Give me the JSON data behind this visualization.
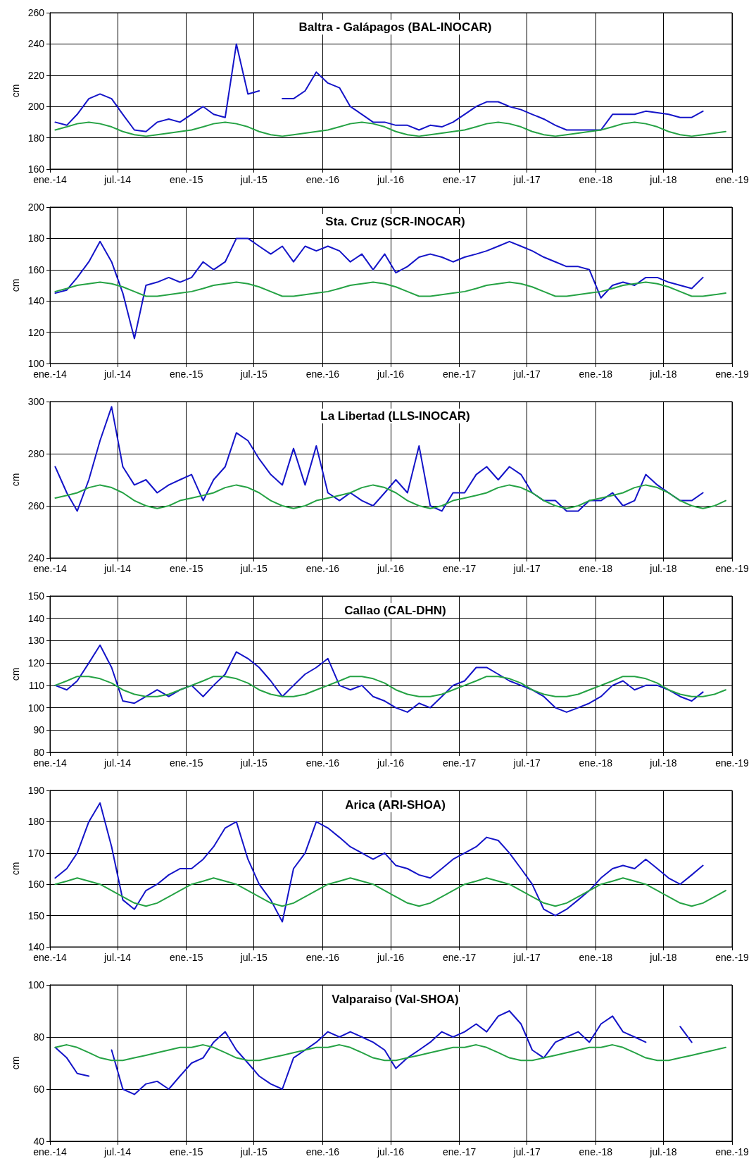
{
  "chart_data": [
    {
      "type": "line",
      "title": "Baltra - Galápagos (BAL-INOCAR)",
      "ylabel": "cm",
      "grid": true,
      "x": [
        "2014-01-15",
        "2014-02-15",
        "2014-03-15",
        "2014-04-15",
        "2014-05-15",
        "2014-06-15",
        "2014-07-15",
        "2014-08-15",
        "2014-09-15",
        "2014-10-15",
        "2014-11-15",
        "2014-12-15",
        "2015-01-15",
        "2015-02-15",
        "2015-03-15",
        "2015-04-15",
        "2015-05-15",
        "2015-06-15",
        "2015-07-15",
        "2015-08-15",
        "2015-09-15",
        "2015-10-15",
        "2015-11-15",
        "2015-12-15",
        "2016-01-15",
        "2016-02-15",
        "2016-03-15",
        "2016-04-15",
        "2016-05-15",
        "2016-06-15",
        "2016-07-15",
        "2016-08-15",
        "2016-09-15",
        "2016-10-15",
        "2016-11-15",
        "2016-12-15",
        "2017-01-15",
        "2017-02-15",
        "2017-03-15",
        "2017-04-15",
        "2017-05-15",
        "2017-06-15",
        "2017-07-15",
        "2017-08-15",
        "2017-09-15",
        "2017-10-15",
        "2017-11-15",
        "2017-12-15",
        "2018-01-15",
        "2018-02-15",
        "2018-03-15",
        "2018-04-15",
        "2018-05-15",
        "2018-06-15",
        "2018-07-15",
        "2018-08-15",
        "2018-09-15",
        "2018-10-15",
        "2018-11-15",
        "2018-12-15"
      ],
      "series": [
        {
          "color": "#1414c8",
          "values": [
            190,
            188,
            195,
            205,
            208,
            205,
            195,
            185,
            184,
            190,
            192,
            190,
            195,
            200,
            195,
            193,
            240,
            208,
            210,
            null,
            205,
            205,
            210,
            222,
            215,
            212,
            200,
            195,
            190,
            190,
            188,
            188,
            185,
            188,
            187,
            190,
            195,
            200,
            203,
            203,
            200,
            198,
            195,
            192,
            188,
            185,
            185,
            185,
            185,
            195,
            195,
            195,
            197,
            196,
            195,
            193,
            193,
            197,
            null,
            null
          ]
        },
        {
          "color": "#25a244",
          "values": [
            185,
            187,
            189,
            190,
            189,
            187,
            184,
            182,
            181,
            182,
            183,
            184,
            185,
            187,
            189,
            190,
            189,
            187,
            184,
            182,
            181,
            182,
            183,
            184,
            185,
            187,
            189,
            190,
            189,
            187,
            184,
            182,
            181,
            182,
            183,
            184,
            185,
            187,
            189,
            190,
            189,
            187,
            184,
            182,
            181,
            182,
            183,
            184,
            185,
            187,
            189,
            190,
            189,
            187,
            184,
            182,
            181,
            182,
            183,
            184
          ]
        }
      ],
      "xlim": [
        "2014-01",
        "2019-01"
      ],
      "xticks": [
        {
          "value": "2014-01",
          "label": "ene.-14"
        },
        {
          "value": "2014-07",
          "label": "jul.-14"
        },
        {
          "value": "2015-01",
          "label": "ene.-15"
        },
        {
          "value": "2015-07",
          "label": "jul.-15"
        },
        {
          "value": "2016-01",
          "label": "ene.-16"
        },
        {
          "value": "2016-07",
          "label": "jul.-16"
        },
        {
          "value": "2017-01",
          "label": "ene.-17"
        },
        {
          "value": "2017-07",
          "label": "jul.-17"
        },
        {
          "value": "2018-01",
          "label": "ene.-18"
        },
        {
          "value": "2018-07",
          "label": "jul.-18"
        },
        {
          "value": "2019-01",
          "label": "ene.-19"
        }
      ],
      "ylim": [
        160,
        260
      ],
      "yticks": [
        160,
        180,
        200,
        220,
        240,
        260
      ]
    },
    {
      "type": "line",
      "title": "Sta. Cruz (SCR-INOCAR)",
      "ylabel": "cm",
      "grid": true,
      "x": [
        "2014-01-15",
        "2014-02-15",
        "2014-03-15",
        "2014-04-15",
        "2014-05-15",
        "2014-06-15",
        "2014-07-15",
        "2014-08-15",
        "2014-09-15",
        "2014-10-15",
        "2014-11-15",
        "2014-12-15",
        "2015-01-15",
        "2015-02-15",
        "2015-03-15",
        "2015-04-15",
        "2015-05-15",
        "2015-06-15",
        "2015-07-15",
        "2015-08-15",
        "2015-09-15",
        "2015-10-15",
        "2015-11-15",
        "2015-12-15",
        "2016-01-15",
        "2016-02-15",
        "2016-03-15",
        "2016-04-15",
        "2016-05-15",
        "2016-06-15",
        "2016-07-15",
        "2016-08-15",
        "2016-09-15",
        "2016-10-15",
        "2016-11-15",
        "2016-12-15",
        "2017-01-15",
        "2017-02-15",
        "2017-03-15",
        "2017-04-15",
        "2017-05-15",
        "2017-06-15",
        "2017-07-15",
        "2017-08-15",
        "2017-09-15",
        "2017-10-15",
        "2017-11-15",
        "2017-12-15",
        "2018-01-15",
        "2018-02-15",
        "2018-03-15",
        "2018-04-15",
        "2018-05-15",
        "2018-06-15",
        "2018-07-15",
        "2018-08-15",
        "2018-09-15",
        "2018-10-15",
        "2018-11-15",
        "2018-12-15"
      ],
      "series": [
        {
          "color": "#1414c8",
          "values": [
            145,
            147,
            155,
            165,
            178,
            165,
            145,
            116,
            150,
            152,
            155,
            152,
            155,
            165,
            160,
            165,
            180,
            180,
            175,
            170,
            175,
            165,
            175,
            172,
            175,
            172,
            165,
            170,
            160,
            170,
            158,
            162,
            168,
            170,
            168,
            165,
            168,
            170,
            172,
            175,
            178,
            175,
            172,
            168,
            165,
            162,
            162,
            160,
            142,
            150,
            152,
            150,
            155,
            155,
            152,
            150,
            148,
            155,
            null,
            null
          ]
        },
        {
          "color": "#25a244",
          "values": [
            146,
            148,
            150,
            151,
            152,
            151,
            149,
            146,
            143,
            143,
            144,
            145,
            146,
            148,
            150,
            151,
            152,
            151,
            149,
            146,
            143,
            143,
            144,
            145,
            146,
            148,
            150,
            151,
            152,
            151,
            149,
            146,
            143,
            143,
            144,
            145,
            146,
            148,
            150,
            151,
            152,
            151,
            149,
            146,
            143,
            143,
            144,
            145,
            146,
            148,
            150,
            151,
            152,
            151,
            149,
            146,
            143,
            143,
            144,
            145
          ]
        }
      ],
      "xlim": [
        "2014-01",
        "2019-01"
      ],
      "xticks": [
        {
          "value": "2014-01",
          "label": "ene.-14"
        },
        {
          "value": "2014-07",
          "label": "jul.-14"
        },
        {
          "value": "2015-01",
          "label": "ene.-15"
        },
        {
          "value": "2015-07",
          "label": "jul.-15"
        },
        {
          "value": "2016-01",
          "label": "ene.-16"
        },
        {
          "value": "2016-07",
          "label": "jul.-16"
        },
        {
          "value": "2017-01",
          "label": "ene.-17"
        },
        {
          "value": "2017-07",
          "label": "jul.-17"
        },
        {
          "value": "2018-01",
          "label": "ene.-18"
        },
        {
          "value": "2018-07",
          "label": "jul.-18"
        },
        {
          "value": "2019-01",
          "label": "ene.-19"
        }
      ],
      "ylim": [
        100,
        200
      ],
      "yticks": [
        100,
        120,
        140,
        160,
        180,
        200
      ]
    },
    {
      "type": "line",
      "title": "La Libertad (LLS-INOCAR)",
      "ylabel": "cm",
      "grid": true,
      "x": [
        "2014-01-15",
        "2014-02-15",
        "2014-03-15",
        "2014-04-15",
        "2014-05-15",
        "2014-06-15",
        "2014-07-15",
        "2014-08-15",
        "2014-09-15",
        "2014-10-15",
        "2014-11-15",
        "2014-12-15",
        "2015-01-15",
        "2015-02-15",
        "2015-03-15",
        "2015-04-15",
        "2015-05-15",
        "2015-06-15",
        "2015-07-15",
        "2015-08-15",
        "2015-09-15",
        "2015-10-15",
        "2015-11-15",
        "2015-12-15",
        "2016-01-15",
        "2016-02-15",
        "2016-03-15",
        "2016-04-15",
        "2016-05-15",
        "2016-06-15",
        "2016-07-15",
        "2016-08-15",
        "2016-09-15",
        "2016-10-15",
        "2016-11-15",
        "2016-12-15",
        "2017-01-15",
        "2017-02-15",
        "2017-03-15",
        "2017-04-15",
        "2017-05-15",
        "2017-06-15",
        "2017-07-15",
        "2017-08-15",
        "2017-09-15",
        "2017-10-15",
        "2017-11-15",
        "2017-12-15",
        "2018-01-15",
        "2018-02-15",
        "2018-03-15",
        "2018-04-15",
        "2018-05-15",
        "2018-06-15",
        "2018-07-15",
        "2018-08-15",
        "2018-09-15",
        "2018-10-15",
        "2018-11-15",
        "2018-12-15"
      ],
      "series": [
        {
          "color": "#1414c8",
          "values": [
            275,
            265,
            258,
            270,
            285,
            298,
            275,
            268,
            270,
            265,
            268,
            270,
            272,
            262,
            270,
            275,
            288,
            285,
            278,
            272,
            268,
            282,
            268,
            283,
            265,
            262,
            265,
            262,
            260,
            265,
            270,
            265,
            283,
            260,
            258,
            265,
            265,
            272,
            275,
            270,
            275,
            272,
            265,
            262,
            262,
            258,
            258,
            262,
            262,
            265,
            260,
            262,
            272,
            268,
            265,
            262,
            262,
            265,
            null,
            null
          ]
        },
        {
          "color": "#25a244",
          "values": [
            263,
            264,
            265,
            267,
            268,
            267,
            265,
            262,
            260,
            259,
            260,
            262,
            263,
            264,
            265,
            267,
            268,
            267,
            265,
            262,
            260,
            259,
            260,
            262,
            263,
            264,
            265,
            267,
            268,
            267,
            265,
            262,
            260,
            259,
            260,
            262,
            263,
            264,
            265,
            267,
            268,
            267,
            265,
            262,
            260,
            259,
            260,
            262,
            263,
            264,
            265,
            267,
            268,
            267,
            265,
            262,
            260,
            259,
            260,
            262
          ]
        }
      ],
      "xlim": [
        "2014-01",
        "2019-01"
      ],
      "xticks": [
        {
          "value": "2014-01",
          "label": "ene.-14"
        },
        {
          "value": "2014-07",
          "label": "jul.-14"
        },
        {
          "value": "2015-01",
          "label": "ene.-15"
        },
        {
          "value": "2015-07",
          "label": "jul.-15"
        },
        {
          "value": "2016-01",
          "label": "ene.-16"
        },
        {
          "value": "2016-07",
          "label": "jul.-16"
        },
        {
          "value": "2017-01",
          "label": "ene.-17"
        },
        {
          "value": "2017-07",
          "label": "jul.-17"
        },
        {
          "value": "2018-01",
          "label": "ene.-18"
        },
        {
          "value": "2018-07",
          "label": "jul.-18"
        },
        {
          "value": "2019-01",
          "label": "ene.-19"
        }
      ],
      "ylim": [
        240,
        300
      ],
      "yticks": [
        240,
        260,
        280,
        300
      ]
    },
    {
      "type": "line",
      "title": "Callao (CAL-DHN)",
      "ylabel": "cm",
      "grid": true,
      "x": [
        "2014-01-15",
        "2014-02-15",
        "2014-03-15",
        "2014-04-15",
        "2014-05-15",
        "2014-06-15",
        "2014-07-15",
        "2014-08-15",
        "2014-09-15",
        "2014-10-15",
        "2014-11-15",
        "2014-12-15",
        "2015-01-15",
        "2015-02-15",
        "2015-03-15",
        "2015-04-15",
        "2015-05-15",
        "2015-06-15",
        "2015-07-15",
        "2015-08-15",
        "2015-09-15",
        "2015-10-15",
        "2015-11-15",
        "2015-12-15",
        "2016-01-15",
        "2016-02-15",
        "2016-03-15",
        "2016-04-15",
        "2016-05-15",
        "2016-06-15",
        "2016-07-15",
        "2016-08-15",
        "2016-09-15",
        "2016-10-15",
        "2016-11-15",
        "2016-12-15",
        "2017-01-15",
        "2017-02-15",
        "2017-03-15",
        "2017-04-15",
        "2017-05-15",
        "2017-06-15",
        "2017-07-15",
        "2017-08-15",
        "2017-09-15",
        "2017-10-15",
        "2017-11-15",
        "2017-12-15",
        "2018-01-15",
        "2018-02-15",
        "2018-03-15",
        "2018-04-15",
        "2018-05-15",
        "2018-06-15",
        "2018-07-15",
        "2018-08-15",
        "2018-09-15",
        "2018-10-15",
        "2018-11-15",
        "2018-12-15"
      ],
      "series": [
        {
          "color": "#1414c8",
          "values": [
            110,
            108,
            112,
            120,
            128,
            118,
            103,
            102,
            105,
            108,
            105,
            108,
            110,
            105,
            110,
            115,
            125,
            122,
            118,
            112,
            105,
            110,
            115,
            118,
            122,
            110,
            108,
            110,
            105,
            103,
            100,
            98,
            102,
            100,
            105,
            110,
            112,
            118,
            118,
            115,
            112,
            110,
            108,
            105,
            100,
            98,
            100,
            102,
            105,
            110,
            112,
            108,
            110,
            110,
            108,
            105,
            103,
            107,
            null,
            null
          ]
        },
        {
          "color": "#25a244",
          "values": [
            110,
            112,
            114,
            114,
            113,
            111,
            108,
            106,
            105,
            105,
            106,
            108,
            110,
            112,
            114,
            114,
            113,
            111,
            108,
            106,
            105,
            105,
            106,
            108,
            110,
            112,
            114,
            114,
            113,
            111,
            108,
            106,
            105,
            105,
            106,
            108,
            110,
            112,
            114,
            114,
            113,
            111,
            108,
            106,
            105,
            105,
            106,
            108,
            110,
            112,
            114,
            114,
            113,
            111,
            108,
            106,
            105,
            105,
            106,
            108
          ]
        }
      ],
      "xlim": [
        "2014-01",
        "2019-01"
      ],
      "xticks": [
        {
          "value": "2014-01",
          "label": "ene.-14"
        },
        {
          "value": "2014-07",
          "label": "jul.-14"
        },
        {
          "value": "2015-01",
          "label": "ene.-15"
        },
        {
          "value": "2015-07",
          "label": "jul.-15"
        },
        {
          "value": "2016-01",
          "label": "ene.-16"
        },
        {
          "value": "2016-07",
          "label": "jul.-16"
        },
        {
          "value": "2017-01",
          "label": "ene.-17"
        },
        {
          "value": "2017-07",
          "label": "jul.-17"
        },
        {
          "value": "2018-01",
          "label": "ene.-18"
        },
        {
          "value": "2018-07",
          "label": "jul.-18"
        },
        {
          "value": "2019-01",
          "label": "ene.-19"
        }
      ],
      "ylim": [
        80,
        150
      ],
      "yticks": [
        80,
        90,
        100,
        110,
        120,
        130,
        140,
        150
      ]
    },
    {
      "type": "line",
      "title": "Arica (ARI-SHOA)",
      "ylabel": "cm",
      "grid": true,
      "x": [
        "2014-01-15",
        "2014-02-15",
        "2014-03-15",
        "2014-04-15",
        "2014-05-15",
        "2014-06-15",
        "2014-07-15",
        "2014-08-15",
        "2014-09-15",
        "2014-10-15",
        "2014-11-15",
        "2014-12-15",
        "2015-01-15",
        "2015-02-15",
        "2015-03-15",
        "2015-04-15",
        "2015-05-15",
        "2015-06-15",
        "2015-07-15",
        "2015-08-15",
        "2015-09-15",
        "2015-10-15",
        "2015-11-15",
        "2015-12-15",
        "2016-01-15",
        "2016-02-15",
        "2016-03-15",
        "2016-04-15",
        "2016-05-15",
        "2016-06-15",
        "2016-07-15",
        "2016-08-15",
        "2016-09-15",
        "2016-10-15",
        "2016-11-15",
        "2016-12-15",
        "2017-01-15",
        "2017-02-15",
        "2017-03-15",
        "2017-04-15",
        "2017-05-15",
        "2017-06-15",
        "2017-07-15",
        "2017-08-15",
        "2017-09-15",
        "2017-10-15",
        "2017-11-15",
        "2017-12-15",
        "2018-01-15",
        "2018-02-15",
        "2018-03-15",
        "2018-04-15",
        "2018-05-15",
        "2018-06-15",
        "2018-07-15",
        "2018-08-15",
        "2018-09-15",
        "2018-10-15",
        "2018-11-15",
        "2018-12-15"
      ],
      "series": [
        {
          "color": "#1414c8",
          "values": [
            162,
            165,
            170,
            180,
            186,
            172,
            155,
            152,
            158,
            160,
            163,
            165,
            165,
            168,
            172,
            178,
            180,
            168,
            160,
            155,
            148,
            165,
            170,
            180,
            178,
            175,
            172,
            170,
            168,
            170,
            166,
            165,
            163,
            162,
            165,
            168,
            170,
            172,
            175,
            174,
            170,
            165,
            160,
            152,
            150,
            152,
            155,
            158,
            162,
            165,
            166,
            165,
            168,
            165,
            162,
            160,
            163,
            166,
            null,
            null
          ]
        },
        {
          "color": "#25a244",
          "values": [
            160,
            161,
            162,
            161,
            160,
            158,
            156,
            154,
            153,
            154,
            156,
            158,
            160,
            161,
            162,
            161,
            160,
            158,
            156,
            154,
            153,
            154,
            156,
            158,
            160,
            161,
            162,
            161,
            160,
            158,
            156,
            154,
            153,
            154,
            156,
            158,
            160,
            161,
            162,
            161,
            160,
            158,
            156,
            154,
            153,
            154,
            156,
            158,
            160,
            161,
            162,
            161,
            160,
            158,
            156,
            154,
            153,
            154,
            156,
            158
          ]
        }
      ],
      "xlim": [
        "2014-01",
        "2019-01"
      ],
      "xticks": [
        {
          "value": "2014-01",
          "label": "ene.-14"
        },
        {
          "value": "2014-07",
          "label": "jul.-14"
        },
        {
          "value": "2015-01",
          "label": "ene.-15"
        },
        {
          "value": "2015-07",
          "label": "jul.-15"
        },
        {
          "value": "2016-01",
          "label": "ene.-16"
        },
        {
          "value": "2016-07",
          "label": "jul.-16"
        },
        {
          "value": "2017-01",
          "label": "ene.-17"
        },
        {
          "value": "2017-07",
          "label": "jul.-17"
        },
        {
          "value": "2018-01",
          "label": "ene.-18"
        },
        {
          "value": "2018-07",
          "label": "jul.-18"
        },
        {
          "value": "2019-01",
          "label": "ene.-19"
        }
      ],
      "ylim": [
        140,
        190
      ],
      "yticks": [
        140,
        150,
        160,
        170,
        180,
        190
      ]
    },
    {
      "type": "line",
      "title": "Valparaiso (Val-SHOA)",
      "ylabel": "cm",
      "grid": true,
      "x": [
        "2014-01-15",
        "2014-02-15",
        "2014-03-15",
        "2014-04-15",
        "2014-05-15",
        "2014-06-15",
        "2014-07-15",
        "2014-08-15",
        "2014-09-15",
        "2014-10-15",
        "2014-11-15",
        "2014-12-15",
        "2015-01-15",
        "2015-02-15",
        "2015-03-15",
        "2015-04-15",
        "2015-05-15",
        "2015-06-15",
        "2015-07-15",
        "2015-08-15",
        "2015-09-15",
        "2015-10-15",
        "2015-11-15",
        "2015-12-15",
        "2016-01-15",
        "2016-02-15",
        "2016-03-15",
        "2016-04-15",
        "2016-05-15",
        "2016-06-15",
        "2016-07-15",
        "2016-08-15",
        "2016-09-15",
        "2016-10-15",
        "2016-11-15",
        "2016-12-15",
        "2017-01-15",
        "2017-02-15",
        "2017-03-15",
        "2017-04-15",
        "2017-05-15",
        "2017-06-15",
        "2017-07-15",
        "2017-08-15",
        "2017-09-15",
        "2017-10-15",
        "2017-11-15",
        "2017-12-15",
        "2018-01-15",
        "2018-02-15",
        "2018-03-15",
        "2018-04-15",
        "2018-05-15",
        "2018-06-15",
        "2018-07-15",
        "2018-08-15",
        "2018-09-15",
        "2018-10-15",
        "2018-11-15",
        "2018-12-15"
      ],
      "series": [
        {
          "color": "#1414c8",
          "values": [
            76,
            72,
            66,
            65,
            null,
            75,
            60,
            58,
            62,
            63,
            60,
            65,
            70,
            72,
            78,
            82,
            75,
            70,
            65,
            62,
            60,
            72,
            75,
            78,
            82,
            80,
            82,
            80,
            78,
            75,
            68,
            72,
            75,
            78,
            82,
            80,
            82,
            85,
            82,
            88,
            90,
            85,
            75,
            72,
            78,
            80,
            82,
            78,
            85,
            88,
            82,
            80,
            78,
            null,
            null,
            84,
            78,
            null,
            null,
            null
          ]
        },
        {
          "color": "#25a244",
          "values": [
            76,
            77,
            76,
            74,
            72,
            71,
            71,
            72,
            73,
            74,
            75,
            76,
            76,
            77,
            76,
            74,
            72,
            71,
            71,
            72,
            73,
            74,
            75,
            76,
            76,
            77,
            76,
            74,
            72,
            71,
            71,
            72,
            73,
            74,
            75,
            76,
            76,
            77,
            76,
            74,
            72,
            71,
            71,
            72,
            73,
            74,
            75,
            76,
            76,
            77,
            76,
            74,
            72,
            71,
            71,
            72,
            73,
            74,
            75,
            76
          ]
        }
      ],
      "xlim": [
        "2014-01",
        "2019-01"
      ],
      "xticks": [
        {
          "value": "2014-01",
          "label": "ene.-14"
        },
        {
          "value": "2014-07",
          "label": "jul.-14"
        },
        {
          "value": "2015-01",
          "label": "ene.-15"
        },
        {
          "value": "2015-07",
          "label": "jul.-15"
        },
        {
          "value": "2016-01",
          "label": "ene.-16"
        },
        {
          "value": "2016-07",
          "label": "jul.-16"
        },
        {
          "value": "2017-01",
          "label": "ene.-17"
        },
        {
          "value": "2017-07",
          "label": "jul.-17"
        },
        {
          "value": "2018-01",
          "label": "ene.-18"
        },
        {
          "value": "2018-07",
          "label": "jul.-18"
        },
        {
          "value": "2019-01",
          "label": "ene.-19"
        }
      ],
      "ylim": [
        40,
        100
      ],
      "yticks": [
        40,
        60,
        80,
        100
      ]
    }
  ]
}
